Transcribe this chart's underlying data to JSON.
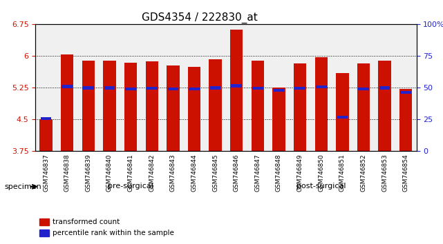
{
  "title": "GDS4354 / 222830_at",
  "samples": [
    "GSM746837",
    "GSM746838",
    "GSM746839",
    "GSM746840",
    "GSM746841",
    "GSM746842",
    "GSM746843",
    "GSM746844",
    "GSM746845",
    "GSM746846",
    "GSM746847",
    "GSM746848",
    "GSM746849",
    "GSM746850",
    "GSM746851",
    "GSM746852",
    "GSM746853",
    "GSM746854"
  ],
  "bar_values": [
    4.5,
    6.04,
    5.9,
    5.9,
    5.85,
    5.88,
    5.78,
    5.75,
    5.92,
    6.62,
    5.9,
    5.25,
    5.82,
    5.98,
    5.6,
    5.82,
    5.9,
    5.22
  ],
  "percentile_values": [
    4.52,
    5.28,
    5.25,
    5.25,
    5.23,
    5.24,
    5.23,
    5.23,
    5.25,
    5.3,
    5.24,
    5.19,
    5.24,
    5.27,
    4.56,
    5.23,
    5.25,
    5.14
  ],
  "ylim_left": [
    3.75,
    6.75
  ],
  "ylim_right": [
    0,
    100
  ],
  "yticks_left": [
    3.75,
    4.5,
    5.25,
    6.0,
    6.75
  ],
  "ytick_labels_left": [
    "3.75",
    "4.5",
    "5.25",
    "6",
    "6.75"
  ],
  "yticks_right": [
    0,
    25,
    50,
    75,
    100
  ],
  "ytick_labels_right": [
    "0",
    "25",
    "50",
    "75",
    "100%"
  ],
  "grid_lines": [
    4.5,
    5.25,
    6.0
  ],
  "bar_color": "#cc1100",
  "percentile_color": "#2222cc",
  "bar_width": 0.6,
  "pre_surgical_indices": [
    0,
    8
  ],
  "post_surgical_indices": [
    9,
    17
  ],
  "pre_surgical_label": "pre-surgical",
  "post_surgical_label": "post-surgical",
  "specimen_label": "specimen",
  "legend_items": [
    {
      "label": "transformed count",
      "color": "#cc1100"
    },
    {
      "label": "percentile rank within the sample",
      "color": "#2222cc"
    }
  ],
  "background_color": "#ffffff",
  "plot_bg": "#ffffff",
  "axis_label_left_color": "#cc1100",
  "axis_label_right_color": "#2222cc",
  "title_fontsize": 11,
  "tick_fontsize": 8,
  "label_fontsize": 8
}
